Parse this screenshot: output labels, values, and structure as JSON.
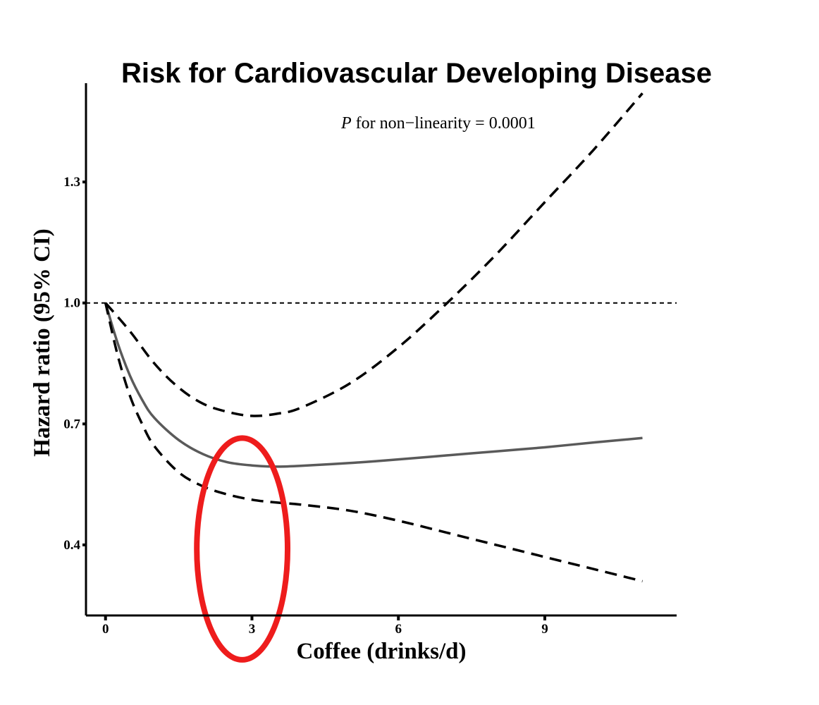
{
  "chart_data": {
    "type": "line",
    "title": "Risk for Cardiovascular Developing Disease",
    "annotation": {
      "p_label": "P",
      "text": " for non−linearity = 0.0001"
    },
    "xlabel": "Coffee (drinks/d)",
    "ylabel": "Hazard ratio (95% CI)",
    "xlim": [
      -0.4,
      11.7
    ],
    "ylim": [
      0.225,
      1.545
    ],
    "x_ticks": [
      0,
      3,
      6,
      9
    ],
    "x_tick_labels": [
      "0",
      "3",
      "6",
      "9"
    ],
    "y_ticks": [
      0.4,
      0.7,
      1.0,
      1.3
    ],
    "y_tick_labels": [
      "0.4",
      "0.7",
      "1.0",
      "1.3"
    ],
    "reference_line": {
      "y": 1.0,
      "style": "dotted"
    },
    "grid": false,
    "series": [
      {
        "role": "estimate",
        "style": "solid",
        "color": "#5a5a5a",
        "x": [
          0,
          0.25,
          0.5,
          0.75,
          1,
          1.5,
          2,
          2.5,
          3,
          3.5,
          4,
          5,
          6,
          7,
          8,
          9,
          10,
          11
        ],
        "y": [
          1.0,
          0.9,
          0.82,
          0.76,
          0.715,
          0.66,
          0.625,
          0.605,
          0.597,
          0.594,
          0.596,
          0.603,
          0.612,
          0.622,
          0.632,
          0.642,
          0.654,
          0.665
        ]
      },
      {
        "role": "upper_ci",
        "style": "dashed",
        "color": "#000000",
        "x": [
          0,
          0.5,
          1,
          1.5,
          2,
          2.5,
          3,
          3.5,
          4,
          5,
          6,
          7,
          8,
          9,
          10,
          11
        ],
        "y": [
          1.0,
          0.93,
          0.85,
          0.79,
          0.75,
          0.73,
          0.72,
          0.725,
          0.74,
          0.8,
          0.89,
          1.0,
          1.12,
          1.25,
          1.38,
          1.52
        ]
      },
      {
        "role": "lower_ci",
        "style": "dashed",
        "color": "#000000",
        "x": [
          0,
          0.25,
          0.5,
          0.75,
          1,
          1.5,
          2,
          2.5,
          3,
          3.5,
          4,
          5,
          6,
          7,
          8,
          9,
          10,
          11
        ],
        "y": [
          1.0,
          0.87,
          0.77,
          0.7,
          0.645,
          0.58,
          0.545,
          0.525,
          0.512,
          0.505,
          0.5,
          0.485,
          0.46,
          0.43,
          0.4,
          0.37,
          0.34,
          0.31
        ]
      }
    ],
    "highlight": {
      "shape": "ellipse",
      "color": "#ee1c1c",
      "center_x": 2.8,
      "center_y": 0.39,
      "radius_x": 0.93,
      "radius_y": 0.275
    }
  }
}
